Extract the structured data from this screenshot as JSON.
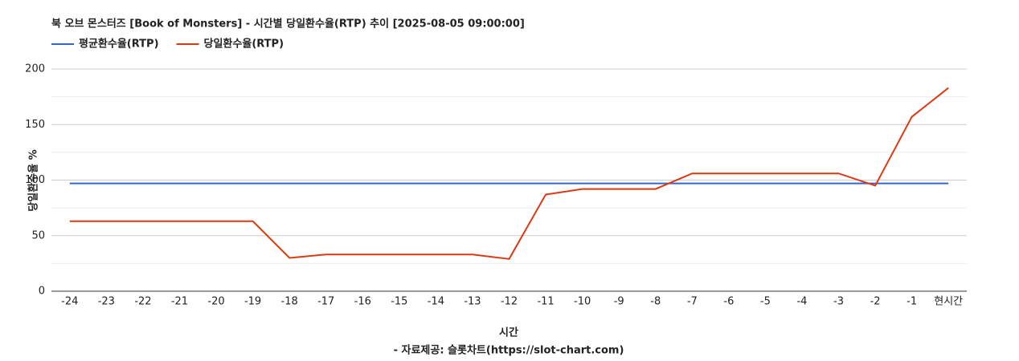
{
  "chart_data": {
    "type": "line",
    "title": "북 오브 몬스터즈 [Book of Monsters] - 시간별 당일환수율(RTP) 추이 [2025-08-05 09:00:00]",
    "x_label": "시간",
    "y_label": "당일환수율 %",
    "source": "- 자료제공: 슬롯차트(https://slot-chart.com)",
    "categories": [
      "-24",
      "-23",
      "-22",
      "-21",
      "-20",
      "-19",
      "-18",
      "-17",
      "-16",
      "-15",
      "-14",
      "-13",
      "-12",
      "-11",
      "-10",
      "-9",
      "-8",
      "-7",
      "-6",
      "-5",
      "-4",
      "-3",
      "-2",
      "-1",
      "현시간"
    ],
    "series": [
      {
        "name": "평균환수율(RTP)",
        "color": "#3366cc",
        "values": [
          97,
          97,
          97,
          97,
          97,
          97,
          97,
          97,
          97,
          97,
          97,
          97,
          97,
          97,
          97,
          97,
          97,
          97,
          97,
          97,
          97,
          97,
          97,
          97,
          97
        ]
      },
      {
        "name": "당일환수율(RTP)",
        "color": "#dc3912",
        "values": [
          63,
          63,
          63,
          63,
          63,
          63,
          30,
          33,
          33,
          33,
          33,
          33,
          29,
          87,
          92,
          92,
          92,
          106,
          106,
          106,
          106,
          106,
          95,
          157,
          183
        ]
      }
    ],
    "ylim": [
      0,
      200
    ],
    "yticks": [
      0,
      50,
      100,
      150,
      200
    ],
    "minor_yticks": [
      25,
      75,
      125,
      175
    ],
    "grid": true,
    "legend": "top-left"
  }
}
